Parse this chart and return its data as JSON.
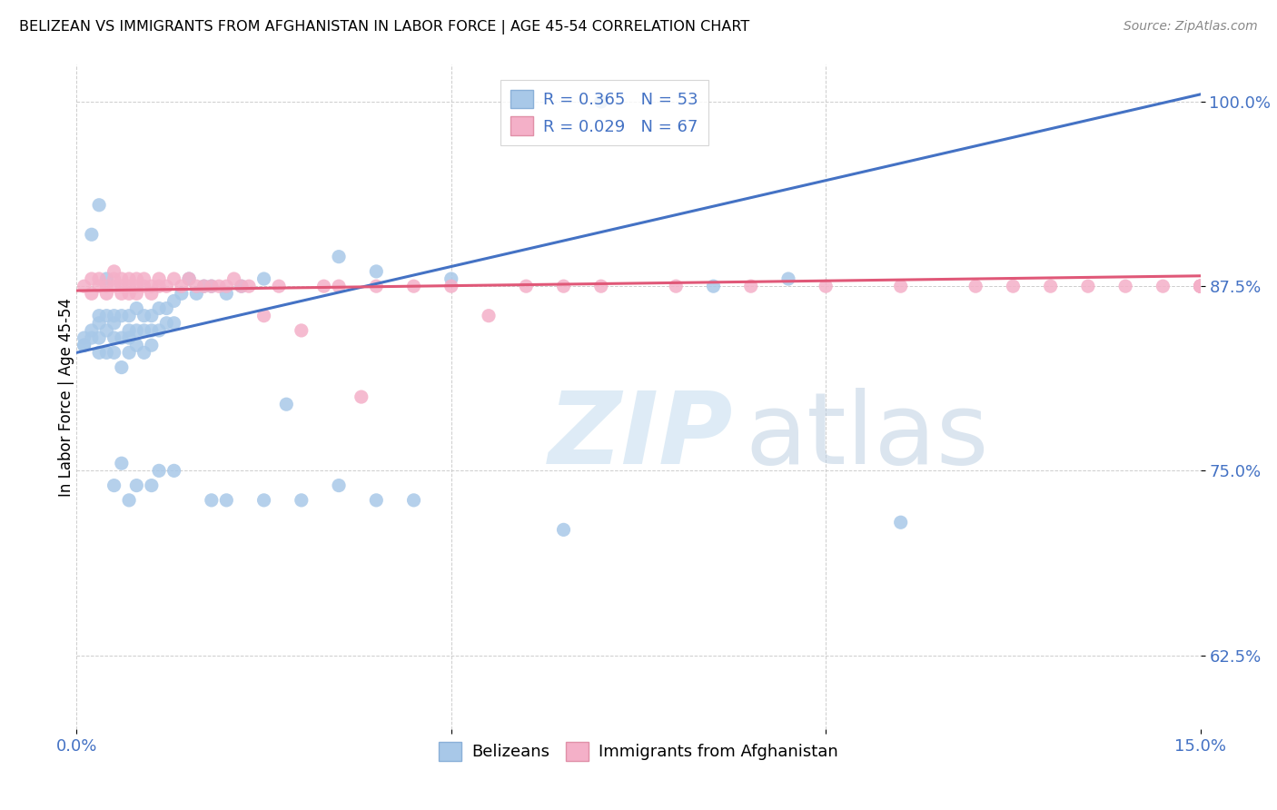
{
  "title": "BELIZEAN VS IMMIGRANTS FROM AFGHANISTAN IN LABOR FORCE | AGE 45-54 CORRELATION CHART",
  "source": "Source: ZipAtlas.com",
  "ylabel": "In Labor Force | Age 45-54",
  "xlim": [
    0.0,
    0.15
  ],
  "ylim": [
    0.575,
    1.025
  ],
  "belizean_R": 0.365,
  "belizean_N": 53,
  "afghan_R": 0.029,
  "afghan_N": 67,
  "belizean_color": "#a8c8e8",
  "afghan_color": "#f4b0c8",
  "trend_belizean_color": "#4472c4",
  "trend_afghan_color": "#e05878",
  "legend_text_color": "#4472c4",
  "belizean_x": [
    0.001,
    0.001,
    0.002,
    0.002,
    0.003,
    0.003,
    0.003,
    0.004,
    0.004,
    0.004,
    0.005,
    0.005,
    0.005,
    0.005,
    0.006,
    0.006,
    0.006,
    0.007,
    0.007,
    0.007,
    0.007,
    0.008,
    0.008,
    0.008,
    0.009,
    0.009,
    0.009,
    0.01,
    0.01,
    0.01,
    0.011,
    0.011,
    0.012,
    0.012,
    0.013,
    0.013,
    0.014,
    0.015,
    0.016,
    0.017,
    0.018,
    0.02,
    0.022,
    0.025,
    0.028,
    0.035,
    0.04,
    0.05,
    0.06,
    0.07,
    0.085,
    0.095,
    0.11
  ],
  "belizean_y": [
    0.84,
    0.835,
    0.84,
    0.845,
    0.84,
    0.85,
    0.855,
    0.83,
    0.845,
    0.855,
    0.83,
    0.84,
    0.85,
    0.855,
    0.82,
    0.84,
    0.855,
    0.83,
    0.84,
    0.845,
    0.855,
    0.835,
    0.845,
    0.86,
    0.83,
    0.845,
    0.855,
    0.835,
    0.845,
    0.855,
    0.845,
    0.86,
    0.85,
    0.86,
    0.85,
    0.865,
    0.87,
    0.88,
    0.87,
    0.875,
    0.875,
    0.87,
    0.875,
    0.88,
    0.795,
    0.895,
    0.885,
    0.88,
    1.0,
    1.0,
    0.875,
    0.88,
    0.715
  ],
  "belizean_x_outliers": [
    0.001,
    0.002,
    0.003,
    0.003,
    0.004,
    0.005,
    0.006,
    0.007,
    0.008,
    0.01,
    0.011,
    0.013,
    0.018,
    0.02,
    0.025,
    0.03,
    0.035,
    0.04,
    0.045,
    0.065
  ],
  "belizean_y_outliers": [
    0.835,
    0.91,
    0.93,
    0.83,
    0.88,
    0.74,
    0.755,
    0.73,
    0.74,
    0.74,
    0.75,
    0.75,
    0.73,
    0.73,
    0.73,
    0.73,
    0.74,
    0.73,
    0.73,
    0.71
  ],
  "afghan_x": [
    0.001,
    0.002,
    0.002,
    0.003,
    0.003,
    0.004,
    0.004,
    0.005,
    0.005,
    0.005,
    0.006,
    0.006,
    0.006,
    0.007,
    0.007,
    0.007,
    0.008,
    0.008,
    0.008,
    0.009,
    0.009,
    0.01,
    0.01,
    0.011,
    0.011,
    0.012,
    0.013,
    0.014,
    0.015,
    0.016,
    0.017,
    0.018,
    0.019,
    0.02,
    0.021,
    0.022,
    0.023,
    0.025,
    0.027,
    0.03,
    0.033,
    0.035,
    0.038,
    0.04,
    0.045,
    0.05,
    0.055,
    0.06,
    0.065,
    0.07,
    0.08,
    0.09,
    0.1,
    0.11,
    0.12,
    0.125,
    0.13,
    0.135,
    0.14,
    0.145,
    0.15,
    0.15,
    0.15,
    0.15,
    0.15,
    0.15,
    0.15
  ],
  "afghan_y": [
    0.875,
    0.87,
    0.88,
    0.875,
    0.88,
    0.87,
    0.875,
    0.875,
    0.88,
    0.885,
    0.87,
    0.875,
    0.88,
    0.87,
    0.875,
    0.88,
    0.87,
    0.875,
    0.88,
    0.875,
    0.88,
    0.87,
    0.875,
    0.875,
    0.88,
    0.875,
    0.88,
    0.875,
    0.88,
    0.875,
    0.875,
    0.875,
    0.875,
    0.875,
    0.88,
    0.875,
    0.875,
    0.855,
    0.875,
    0.845,
    0.875,
    0.875,
    0.8,
    0.875,
    0.875,
    0.875,
    0.855,
    0.875,
    0.875,
    0.875,
    0.875,
    0.875,
    0.875,
    0.875,
    0.875,
    0.875,
    0.875,
    0.875,
    0.875,
    0.875,
    0.875,
    0.875,
    0.875,
    0.875,
    0.875,
    0.875,
    0.875
  ],
  "trend_b_x0": 0.0,
  "trend_b_y0": 0.83,
  "trend_b_x1": 0.15,
  "trend_b_y1": 1.005,
  "trend_a_x0": 0.0,
  "trend_a_y0": 0.872,
  "trend_a_x1": 0.15,
  "trend_a_y1": 0.882
}
